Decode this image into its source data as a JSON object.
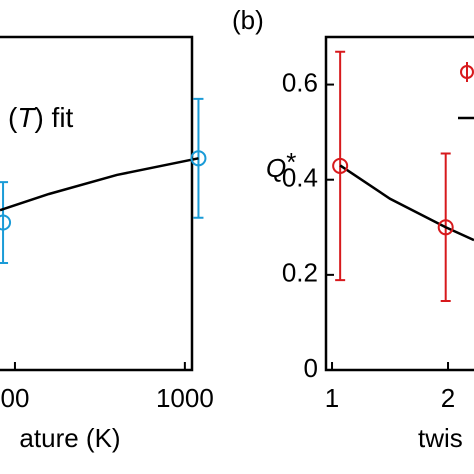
{
  "chart_data": [
    {
      "type": "scatter",
      "xlabel": "ature (K)",
      "annotation": [
        "(",
        "T",
        ") fit"
      ],
      "xlim": [
        456,
        1021
      ],
      "ylim": [
        0,
        0.7
      ],
      "xticks": [
        {
          "value": 500,
          "label": "00"
        },
        1000
      ],
      "series": [
        {
          "color": "#1a9bd7",
          "x": [
            465,
            1040
          ],
          "values": [
            0.31,
            0.445
          ],
          "errors": [
            0.085,
            0.125
          ],
          "style": "points"
        },
        {
          "color": "#000000",
          "x": [
            456,
            600,
            800,
            1040
          ],
          "values": [
            0.336,
            0.37,
            0.41,
            0.445
          ],
          "style": "line"
        }
      ]
    },
    {
      "type": "scatter",
      "panel_label": "(b)",
      "xlabel": "twis",
      "ylabel": [
        "Q",
        "*"
      ],
      "xlim": [
        0.948,
        2.224
      ],
      "ylim": [
        0,
        0.7
      ],
      "xticks": [
        1,
        2
      ],
      "yticks": [
        0,
        0.2,
        0.4,
        0.6
      ],
      "series": [
        {
          "color": "#d7191c",
          "x": [
            1.07,
            1.98
          ],
          "values": [
            0.429,
            0.3
          ],
          "errors": [
            0.24,
            0.155
          ],
          "style": "points"
        },
        {
          "color": "#000000",
          "x": [
            1.07,
            1.5,
            1.98,
            2.224
          ],
          "values": [
            0.43,
            0.36,
            0.3,
            0.273
          ],
          "style": "line"
        }
      ]
    }
  ]
}
